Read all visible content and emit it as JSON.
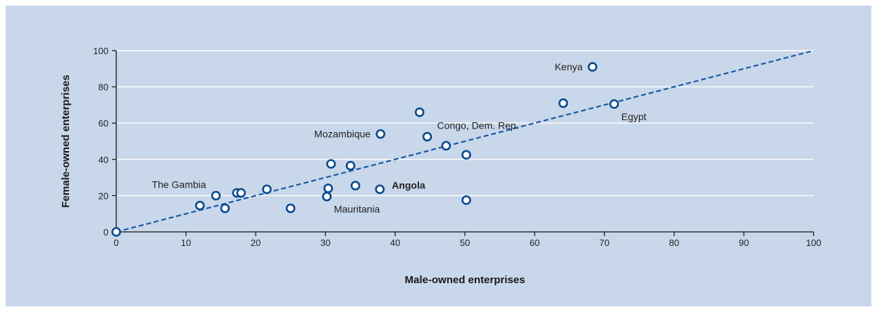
{
  "colors": {
    "panel_background": "#c9d7ea",
    "marker_stroke": "#0b4a8f",
    "marker_fill": "#ffffff",
    "trendline": "#1a5aa6",
    "gridline": "#ffffff",
    "axis": "#111111"
  },
  "chart_data": {
    "type": "scatter",
    "title": "",
    "xlabel": "Male-owned enterprises",
    "ylabel": "Female-owned enterprises",
    "xlim": [
      0,
      100
    ],
    "ylim": [
      0,
      100
    ],
    "xticks": [
      0,
      10,
      20,
      30,
      40,
      50,
      60,
      70,
      80,
      90,
      100
    ],
    "yticks": [
      0,
      20,
      40,
      60,
      80,
      100
    ],
    "grid": "horizontal",
    "trendline": {
      "style": "dashed",
      "from": [
        0,
        0
      ],
      "to": [
        100,
        100
      ]
    },
    "points": [
      {
        "x": 0,
        "y": 0,
        "label": ""
      },
      {
        "x": 12,
        "y": 14.5,
        "label": ""
      },
      {
        "x": 14.3,
        "y": 20,
        "label": "The Gambia",
        "label_pos": "upper-left"
      },
      {
        "x": 15.6,
        "y": 13,
        "label": ""
      },
      {
        "x": 17.3,
        "y": 21.5,
        "label": ""
      },
      {
        "x": 17.9,
        "y": 21.5,
        "label": ""
      },
      {
        "x": 21.6,
        "y": 23.5,
        "label": ""
      },
      {
        "x": 25,
        "y": 13,
        "label": ""
      },
      {
        "x": 30.2,
        "y": 19.5,
        "label": "Mauritania",
        "label_pos": "lower-right"
      },
      {
        "x": 30.4,
        "y": 24,
        "label": ""
      },
      {
        "x": 30.8,
        "y": 37.5,
        "label": ""
      },
      {
        "x": 33.6,
        "y": 36.5,
        "label": ""
      },
      {
        "x": 34.3,
        "y": 25.5,
        "label": ""
      },
      {
        "x": 37.8,
        "y": 23.5,
        "label": "Angola",
        "label_pos": "right",
        "bold": true
      },
      {
        "x": 37.9,
        "y": 54,
        "label": "Mozambique",
        "label_pos": "left"
      },
      {
        "x": 43.5,
        "y": 66,
        "label": ""
      },
      {
        "x": 44.6,
        "y": 52.5,
        "label": "Congo, Dem. Rep.",
        "label_pos": "upper-right"
      },
      {
        "x": 47.3,
        "y": 47.5,
        "label": ""
      },
      {
        "x": 50.2,
        "y": 42.5,
        "label": ""
      },
      {
        "x": 50.2,
        "y": 17.5,
        "label": ""
      },
      {
        "x": 64.1,
        "y": 71,
        "label": ""
      },
      {
        "x": 68.3,
        "y": 91,
        "label": "Kenya",
        "label_pos": "left"
      },
      {
        "x": 71.4,
        "y": 70.5,
        "label": "Egypt",
        "label_pos": "lower-right"
      }
    ]
  }
}
